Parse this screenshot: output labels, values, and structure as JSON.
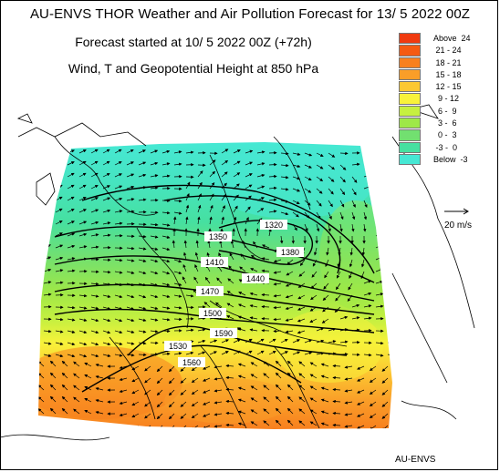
{
  "header": {
    "title": "AU-ENVS THOR Weather and Air Pollution Forecast for 13/ 5 2022  00Z",
    "forecast_start": "Forecast started at 10/ 5 2022  00Z (+72h)",
    "field": "Wind, T and Geopotential Height at 850 hPa"
  },
  "legend": [
    {
      "label": "Above  24",
      "color": "#f03a10"
    },
    {
      "label": " 21 - 24",
      "color": "#f55a12"
    },
    {
      "label": " 18 - 21",
      "color": "#f8801e"
    },
    {
      "label": " 15 - 18",
      "color": "#fa9e28"
    },
    {
      "label": " 12 - 15",
      "color": "#fcc832"
    },
    {
      "label": "  9 - 12",
      "color": "#f8f23a"
    },
    {
      "label": "  6 -  9",
      "color": "#c6f040"
    },
    {
      "label": "  3 -  6",
      "color": "#9ee848"
    },
    {
      "label": "  0 -  3",
      "color": "#72e070"
    },
    {
      "label": " -3 -  0",
      "color": "#46e0a0"
    },
    {
      "label": "Below  -3",
      "color": "#46e8d4"
    }
  ],
  "wind_reference": {
    "label": "20 m/s"
  },
  "contours": [
    {
      "label": "1320",
      "color": "#000000"
    },
    {
      "label": "1350",
      "color": "#000000"
    },
    {
      "label": "1380",
      "color": "#000000"
    },
    {
      "label": "1410",
      "color": "#000000"
    },
    {
      "label": "1440",
      "color": "#000000"
    },
    {
      "label": "1470",
      "color": "#000000"
    },
    {
      "label": "1500",
      "color": "#000000"
    },
    {
      "label": "1530",
      "color": "#000000"
    },
    {
      "label": "1560",
      "color": "#000000"
    },
    {
      "label": "1590",
      "color": "#000000"
    }
  ],
  "footer": "AU-ENVS"
}
